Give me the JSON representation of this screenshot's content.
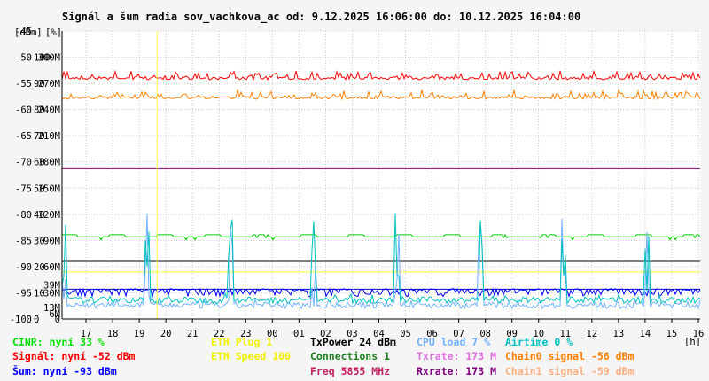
{
  "chart_data": {
    "type": "line",
    "title": "Signál a šum radia sov_vachkova_ac od: 9.12.2025 16:06:00 do: 10.12.2025 16:04:00",
    "unit_labels": [
      "[dBm]",
      "[%]"
    ],
    "x_tick_labels": [
      "17",
      "18",
      "19",
      "20",
      "21",
      "22",
      "23",
      "00",
      "01",
      "02",
      "03",
      "04",
      "05",
      "06",
      "07",
      "08",
      "09",
      "10",
      "11",
      "12",
      "13",
      "14",
      "15",
      "16"
    ],
    "x_unit": "[h]",
    "x_range_hours": [
      16.1,
      40.067
    ],
    "y_range_dbm": [
      -100,
      -45
    ],
    "y_ticks": [
      {
        "dbm": "-45",
        "pct": "",
        "rate": ""
      },
      {
        "dbm": "-50",
        "pct": "100",
        "rate": "300M"
      },
      {
        "dbm": "-55",
        "pct": "90",
        "rate": "270M"
      },
      {
        "dbm": "-60",
        "pct": "80",
        "rate": "240M"
      },
      {
        "dbm": "-65",
        "pct": "70",
        "rate": "210M"
      },
      {
        "dbm": "-70",
        "pct": "60",
        "rate": "180M"
      },
      {
        "dbm": "-75",
        "pct": "50",
        "rate": "150M"
      },
      {
        "dbm": "-80",
        "pct": "40",
        "rate": "120M"
      },
      {
        "dbm": "-85",
        "pct": "30",
        "rate": "90M"
      },
      {
        "dbm": "-90",
        "pct": "20",
        "rate": "60M"
      },
      {
        "dbm": "-95",
        "pct": "10",
        "rate": "30M"
      },
      {
        "dbm": "-100",
        "pct": "0",
        "rate": "0"
      }
    ],
    "extra_rate_labels": [
      {
        "text": "39M",
        "dbm": -93.5,
        "color": "#e070e0"
      },
      {
        "text": "13M",
        "dbm": -97.8,
        "color": "#e070e0"
      },
      {
        "text": "6M",
        "dbm": -99.0,
        "color": "#a000a0"
      }
    ],
    "marker_hour": 19.67,
    "reference_lines_dbm": [
      {
        "dbm": -71.3,
        "color": "#7f007f"
      },
      {
        "dbm": -89.0,
        "color": "#000000"
      },
      {
        "dbm": -91.0,
        "color": "#ffff30"
      },
      {
        "dbm": -94.3,
        "color": "#0000c0"
      }
    ],
    "series": [
      {
        "name": "Signál",
        "color": "#ff0000",
        "base_dbm": -53.8,
        "variation": "spiky-up"
      },
      {
        "name": "Chain0 signal",
        "color": "#ff8000",
        "base_dbm": -57.5,
        "variation": "spiky-up"
      },
      {
        "name": "CINR",
        "color": "#00d000",
        "base_dbm": -84.3,
        "variation": "steps"
      },
      {
        "name": "Šum",
        "color": "#0000ff",
        "base_dbm": -94.8,
        "variation": "spiky-down"
      },
      {
        "name": "CPU load",
        "color": "#70b0ff",
        "base_dbm": -98.0,
        "variation": "bursts"
      },
      {
        "name": "Airtime",
        "color": "#00c0c0",
        "base_dbm": -97.0,
        "variation": "bursts"
      }
    ],
    "legend": [
      [
        "CINR: nyní 33 %",
        "ETH Plug 1",
        "TxPower 24 dBm",
        "CPU load 7 %",
        "Airtime 0 %"
      ],
      [
        "Signál: nyní -52 dBm",
        "ETH Speed 100",
        "Connections 1",
        "Txrate: 173 M",
        "Chain0 signal -56 dBm"
      ],
      [
        "Šum: nyní -93 dBm",
        "",
        "Freq 5855 MHz",
        "Rxrate: 173 M",
        "Chain1 signal -59 dBm"
      ]
    ],
    "legend_colors": [
      [
        "#00e000",
        "#f0f000",
        "#000000",
        "#70b0ff",
        "#00c0c0"
      ],
      [
        "#ff0000",
        "#f0f000",
        "#208020",
        "#e070e0",
        "#ff8000"
      ],
      [
        "#0000ff",
        "",
        "#c02060",
        "#800080",
        "#ffb080"
      ]
    ]
  }
}
